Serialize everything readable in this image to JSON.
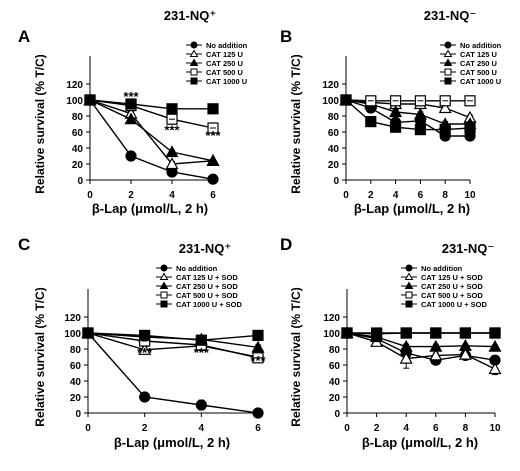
{
  "chart_data": [
    {
      "type": "line",
      "panel_label": "A",
      "title": "231-NQ⁺",
      "xlabel": "β-Lap (μmol/L, 2 h)",
      "ylabel": "Relative survival (% T/C)",
      "xlim": [
        0,
        6
      ],
      "ylim": [
        0,
        120
      ],
      "xticks": [
        0,
        2,
        4,
        6
      ],
      "yticks": [
        0,
        20,
        40,
        60,
        80,
        100,
        120
      ],
      "grid": false,
      "legend_position": "top-right",
      "x": [
        0,
        2,
        4,
        6
      ],
      "series": [
        {
          "name": "No addition",
          "marker": "filled-circle",
          "values": [
            100,
            30,
            10,
            1
          ],
          "errors": [
            0,
            1,
            1,
            1
          ]
        },
        {
          "name": "CAT 125    U",
          "marker": "open-triangle",
          "values": [
            100,
            83,
            20,
            24
          ],
          "errors": [
            0,
            3,
            3,
            1
          ]
        },
        {
          "name": "CAT 250    U",
          "marker": "filled-triangle",
          "values": [
            100,
            76,
            35,
            24
          ],
          "errors": [
            0,
            2,
            2,
            1
          ]
        },
        {
          "name": "CAT 500    U",
          "marker": "open-square",
          "values": [
            100,
            93,
            76,
            65
          ],
          "errors": [
            0,
            2,
            3,
            3
          ]
        },
        {
          "name": "CAT 1000  U",
          "marker": "filled-square",
          "values": [
            100,
            95,
            89,
            89
          ],
          "errors": [
            0,
            1,
            1,
            1
          ]
        }
      ],
      "annotations": [
        {
          "text": "***",
          "x": 2,
          "y": 99
        },
        {
          "text": "***",
          "x": 4,
          "y": 57
        },
        {
          "text": "***",
          "x": 6,
          "y": 50
        }
      ]
    },
    {
      "type": "line",
      "panel_label": "B",
      "title": "231-NQ⁻",
      "xlabel": "β-Lap (μmol/L, 2 h)",
      "ylabel": "Relative survival (% T/C)",
      "xlim": [
        0,
        10
      ],
      "ylim": [
        0,
        120
      ],
      "xticks": [
        0,
        2,
        4,
        6,
        8,
        10
      ],
      "yticks": [
        0,
        20,
        40,
        60,
        80,
        100,
        120
      ],
      "grid": false,
      "legend_position": "top-right",
      "x": [
        0,
        2,
        4,
        6,
        8,
        10
      ],
      "series": [
        {
          "name": "No addition",
          "marker": "filled-circle",
          "values": [
            100,
            90,
            72,
            74,
            55,
            55
          ],
          "errors": [
            0,
            3,
            5,
            3,
            4,
            5
          ]
        },
        {
          "name": "CAT 125    U",
          "marker": "open-triangle",
          "values": [
            100,
            97,
            95,
            95,
            90,
            78
          ],
          "errors": [
            0,
            2,
            2,
            2,
            5,
            3
          ]
        },
        {
          "name": "CAT 250    U",
          "marker": "filled-triangle",
          "values": [
            100,
            95,
            85,
            82,
            70,
            70
          ],
          "errors": [
            0,
            2,
            3,
            3,
            3,
            3
          ]
        },
        {
          "name": "CAT 500    U",
          "marker": "open-square",
          "values": [
            100,
            99,
            99,
            99,
            99,
            99
          ],
          "errors": [
            0,
            1,
            1,
            1,
            1,
            1
          ]
        },
        {
          "name": "CAT 1000  U",
          "marker": "filled-square",
          "values": [
            100,
            73,
            66,
            63,
            63,
            65
          ],
          "errors": [
            0,
            2,
            2,
            2,
            2,
            2
          ]
        }
      ]
    },
    {
      "type": "line",
      "panel_label": "C",
      "title": "231-NQ⁺",
      "xlabel": "β-Lap (μmol/L, 2 h)",
      "ylabel": "Relative survival (% T/C)",
      "xlim": [
        0,
        6
      ],
      "ylim": [
        0,
        120
      ],
      "xticks": [
        0,
        2,
        4,
        6
      ],
      "yticks": [
        0,
        20,
        40,
        60,
        80,
        100,
        120
      ],
      "grid": false,
      "legend_position": "top-right",
      "x": [
        0,
        2,
        4,
        6
      ],
      "series": [
        {
          "name": "No addition",
          "marker": "filled-circle",
          "values": [
            100,
            20,
            10,
            0
          ],
          "errors": [
            0,
            2,
            6,
            1
          ]
        },
        {
          "name": "CAT 125    U + SOD",
          "marker": "open-triangle",
          "values": [
            100,
            79,
            84,
            70
          ],
          "errors": [
            0,
            4,
            6,
            4
          ]
        },
        {
          "name": "CAT 250    U + SOD",
          "marker": "filled-triangle",
          "values": [
            100,
            95,
            92,
            82
          ],
          "errors": [
            0,
            3,
            3,
            3
          ]
        },
        {
          "name": "CAT 500    U + SOD",
          "marker": "open-square",
          "values": [
            100,
            90,
            85,
            69
          ],
          "errors": [
            0,
            3,
            3,
            3
          ]
        },
        {
          "name": "CAT 1000 U + SOD",
          "marker": "filled-square",
          "values": [
            100,
            97,
            91,
            97
          ],
          "errors": [
            0,
            2,
            3,
            6
          ]
        }
      ],
      "annotations": [
        {
          "text": "***",
          "x": 2,
          "y": 70
        },
        {
          "text": "***",
          "x": 4,
          "y": 70
        },
        {
          "text": "***",
          "x": 6,
          "y": 60
        }
      ]
    },
    {
      "type": "line",
      "panel_label": "D",
      "title": "231-NQ⁻",
      "xlabel": "β-Lap (μmol/L, 2 h)",
      "ylabel": "Relative survival (% T/C)",
      "xlim": [
        0,
        10
      ],
      "ylim": [
        0,
        120
      ],
      "xticks": [
        0,
        2,
        4,
        6,
        8,
        10
      ],
      "yticks": [
        0,
        20,
        40,
        60,
        80,
        100,
        120
      ],
      "grid": false,
      "legend_position": "top-right",
      "x": [
        0,
        2,
        4,
        6,
        8,
        10
      ],
      "series": [
        {
          "name": "No addition",
          "marker": "filled-circle",
          "values": [
            100,
            93,
            75,
            66,
            72,
            66
          ],
          "errors": [
            0,
            3,
            5,
            3,
            3,
            3
          ]
        },
        {
          "name": "CAT 125    U + SOD",
          "marker": "open-triangle",
          "values": [
            100,
            89,
            68,
            72,
            73,
            55
          ],
          "errors": [
            0,
            3,
            12,
            3,
            3,
            7
          ]
        },
        {
          "name": "CAT 250    U + SOD",
          "marker": "filled-triangle",
          "values": [
            100,
            95,
            83,
            83,
            84,
            83
          ],
          "errors": [
            0,
            2,
            3,
            3,
            2,
            2
          ]
        },
        {
          "name": "CAT 500    U + SOD",
          "marker": "open-square",
          "values": [
            100,
            99,
            100,
            100,
            100,
            100
          ],
          "errors": [
            0,
            1,
            1,
            1,
            1,
            1
          ]
        },
        {
          "name": "CAT 1000 U + SOD",
          "marker": "filled-square",
          "values": [
            100,
            100,
            100,
            100,
            100,
            100
          ],
          "errors": [
            0,
            1,
            1,
            1,
            1,
            1
          ]
        }
      ]
    }
  ]
}
